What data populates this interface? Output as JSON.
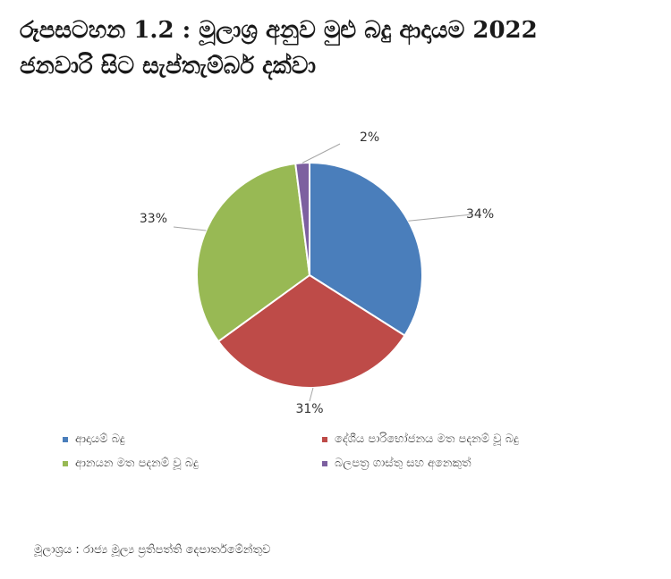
{
  "title": {
    "line1": "රූපසටහන 1.2 : මූලාශ්‍ර අනුව මුළු බදු ආදායම 2022",
    "line2": "ජනවාරි සිට සැප්තැම්බර් දක්වා"
  },
  "chart_data": {
    "type": "pie",
    "slices": [
      {
        "label": "ආදායම් බදු",
        "value": 34,
        "value_label": "34%",
        "color": "#4a7ebb"
      },
      {
        "label": "දේශීය පාරිභෝජනය මත පදනම් වූ බදු",
        "value": 31,
        "value_label": "31%",
        "color": "#be4b48"
      },
      {
        "label": "ආනයන මත පදනම් වූ බදු",
        "value": 33,
        "value_label": "33%",
        "color": "#98b954"
      },
      {
        "label": "බලපත්‍ර ගාස්තු සහ අනෙකුත්",
        "value": 2,
        "value_label": "2%",
        "color": "#7d60a0"
      }
    ],
    "legend_position": "bottom"
  },
  "source": "මූලාශ්‍රය : රාජ්‍ය මූල්‍ය ප්‍රතිපත්ති දෙපාර්තමේන්තුව"
}
